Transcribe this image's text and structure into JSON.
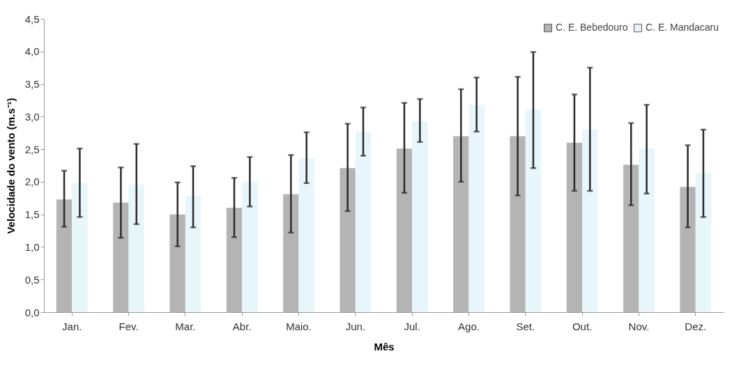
{
  "chart_data": {
    "type": "bar",
    "categories": [
      "Jan.",
      "Fev.",
      "Mar.",
      "Abr.",
      "Maio.",
      "Jun.",
      "Jul.",
      "Ago.",
      "Set.",
      "Out.",
      "Nov.",
      "Dez."
    ],
    "series": [
      {
        "name": "C. E. Bebedouro",
        "color": "#b4b4b4",
        "values": [
          1.73,
          1.68,
          1.5,
          1.6,
          1.81,
          2.21,
          2.51,
          2.7,
          2.7,
          2.6,
          2.26,
          1.92
        ],
        "errors": [
          [
            1.31,
            2.17
          ],
          [
            1.14,
            2.22
          ],
          [
            1.01,
            1.99
          ],
          [
            1.15,
            2.06
          ],
          [
            1.22,
            2.41
          ],
          [
            1.55,
            2.89
          ],
          [
            1.83,
            3.21
          ],
          [
            2.0,
            3.42
          ],
          [
            1.79,
            3.61
          ],
          [
            1.86,
            3.34
          ],
          [
            1.64,
            2.9
          ],
          [
            1.3,
            2.56
          ]
        ]
      },
      {
        "name": "C. E. Mandacaru",
        "color": "#e6f6fb",
        "values": [
          1.98,
          1.96,
          1.78,
          2.0,
          2.36,
          2.76,
          2.93,
          3.18,
          3.11,
          2.8,
          2.51,
          2.13
        ],
        "errors": [
          [
            1.46,
            2.51
          ],
          [
            1.35,
            2.58
          ],
          [
            1.3,
            2.24
          ],
          [
            1.62,
            2.38
          ],
          [
            1.98,
            2.76
          ],
          [
            2.4,
            3.14
          ],
          [
            2.61,
            3.27
          ],
          [
            2.77,
            3.6
          ],
          [
            2.21,
            3.99
          ],
          [
            1.86,
            3.75
          ],
          [
            1.82,
            3.18
          ],
          [
            1.46,
            2.8
          ]
        ]
      }
    ],
    "xlabel": "Mês",
    "ylabel": "Velocidade do vento (m.s⁻¹)",
    "ylim": [
      0,
      4.5
    ],
    "yticks": [
      {
        "value": 0,
        "label": "0,0"
      },
      {
        "value": 0.5,
        "label": "0,5"
      },
      {
        "value": 1,
        "label": "1,0"
      },
      {
        "value": 1.5,
        "label": "1,5"
      },
      {
        "value": 2,
        "label": "2,0"
      },
      {
        "value": 2.5,
        "label": "2,5"
      },
      {
        "value": 3,
        "label": "3,0"
      },
      {
        "value": 3.5,
        "label": "3,5"
      },
      {
        "value": 4,
        "label": "4,0"
      },
      {
        "value": 4.5,
        "label": "4,5"
      }
    ],
    "legend": "top right",
    "grid": false
  }
}
